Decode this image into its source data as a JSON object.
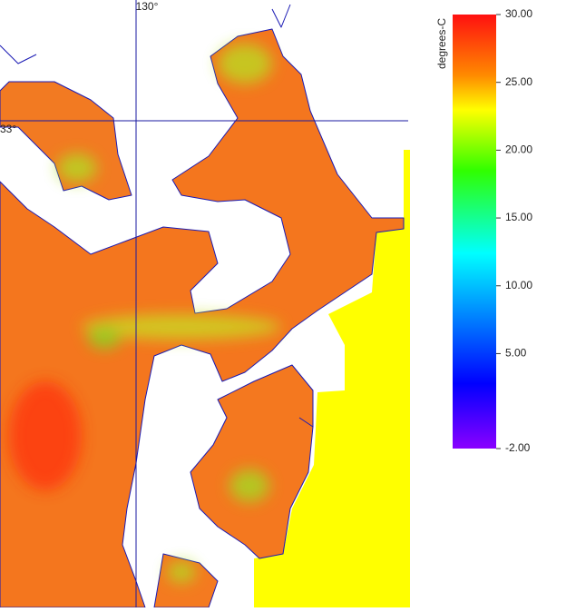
{
  "graticule_labels": {
    "lon": "130°",
    "lat": "33°"
  },
  "colorbar": {
    "label": "degrees-C",
    "range": [
      -2,
      30
    ],
    "ticks": [
      {
        "value": 30,
        "label": "30.00"
      },
      {
        "value": 25,
        "label": "25.00"
      },
      {
        "value": 20,
        "label": "20.00"
      },
      {
        "value": 15,
        "label": "15.00"
      },
      {
        "value": 10,
        "label": "10.00"
      },
      {
        "value": 5,
        "label": "5.00"
      },
      {
        "value": -2,
        "label": "-2.00"
      }
    ]
  }
}
